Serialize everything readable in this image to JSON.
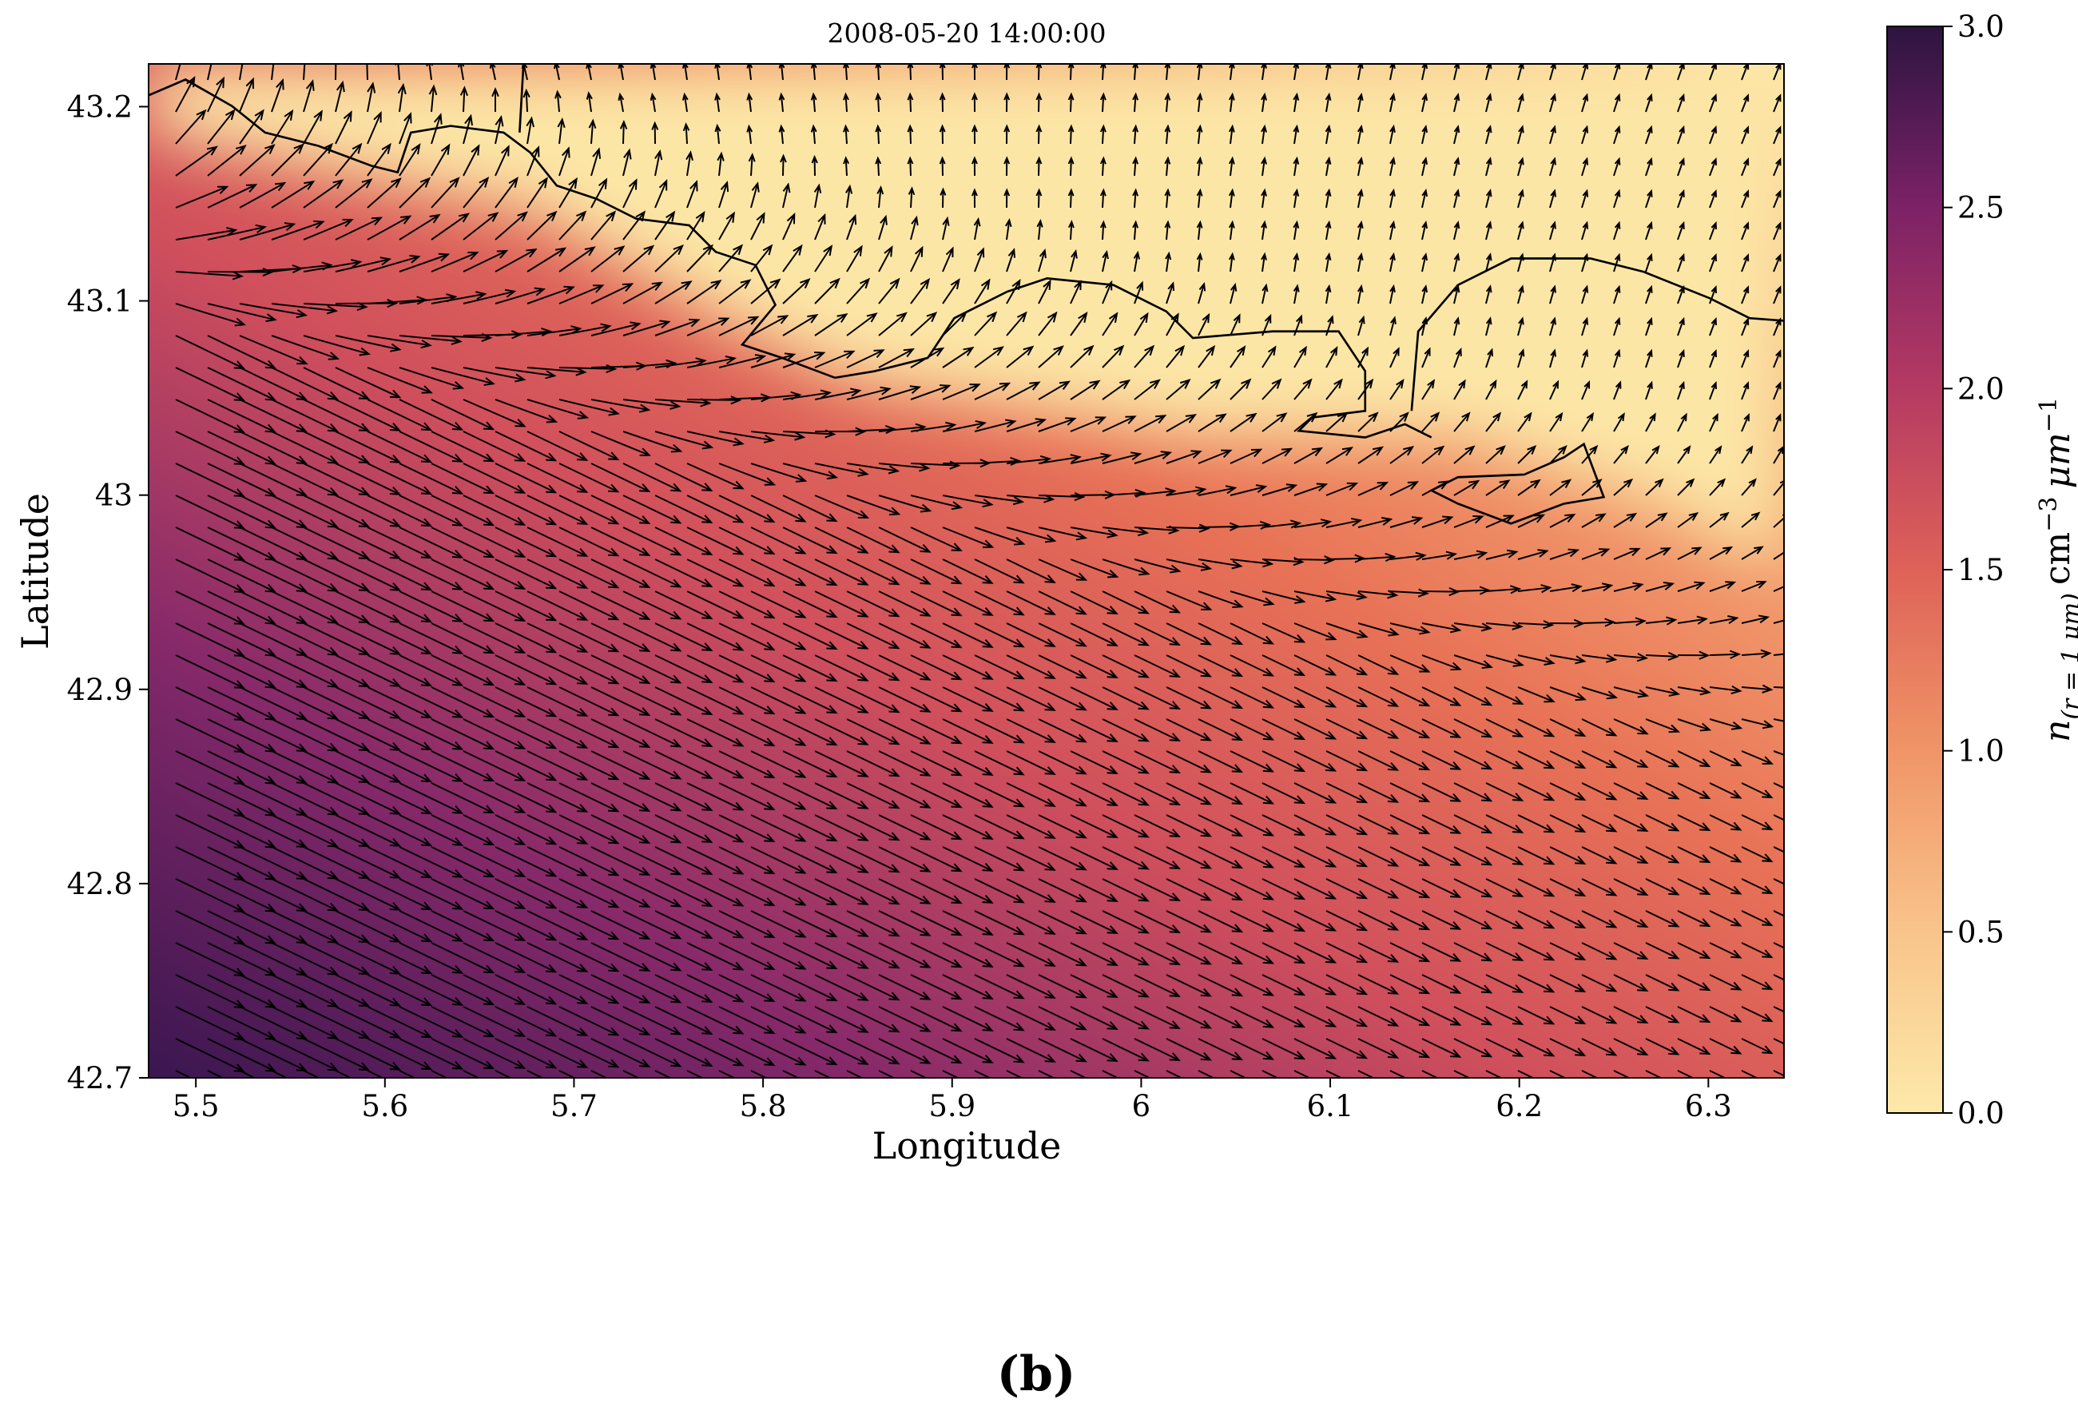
{
  "chart_data": {
    "type": "quiver-map",
    "title": "2008-05-20 14:00:00",
    "x_label": "Longitude",
    "y_label": "Latitude",
    "xlim": [
      5.475,
      6.34
    ],
    "ylim": [
      42.7,
      43.222
    ],
    "xticks": [
      5.5,
      5.6,
      5.7,
      5.8,
      5.9,
      6.0,
      6.1,
      6.2,
      6.3
    ],
    "yticks": [
      42.7,
      42.8,
      42.9,
      43.0,
      43.1,
      43.2
    ],
    "colorbar": {
      "colors": [
        "#fde9aa",
        "#f9c48b",
        "#f09567",
        "#de6258",
        "#b53a62",
        "#7c2266",
        "#2d1441"
      ],
      "lim": [
        0,
        3
      ],
      "ticks": [
        {
          "value": 0,
          "label": "0.0"
        },
        0.5,
        {
          "value": 1,
          "label": "1.0"
        },
        1.5,
        {
          "value": 2,
          "label": "2.0"
        },
        2.5,
        {
          "value": 3,
          "label": "3.0"
        }
      ],
      "label": {
        "symbol": "n",
        "subscript": "(r = 1 μm)",
        "unit1": "cm",
        "exp1": "−3",
        "unit2": "μm",
        "exp2": "−1"
      }
    }
  },
  "caption": "(b)"
}
